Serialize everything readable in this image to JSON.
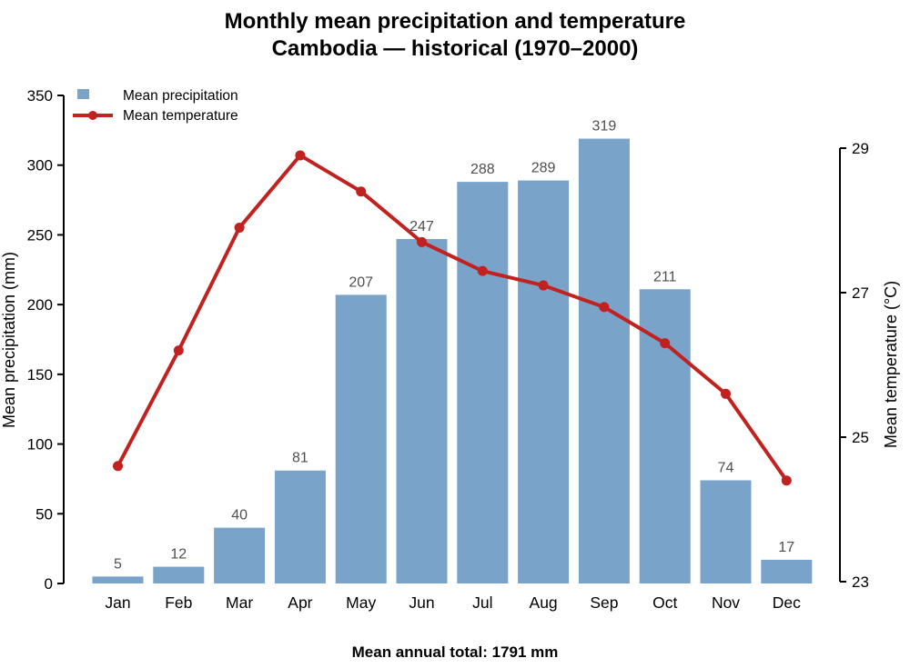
{
  "chart_data": {
    "type": "bar",
    "combo": "bar+line",
    "title": "Monthly mean precipitation and temperature",
    "subtitle": "Cambodia — historical (1970–2000)",
    "categories": [
      "Jan",
      "Feb",
      "Mar",
      "Apr",
      "May",
      "Jun",
      "Jul",
      "Aug",
      "Sep",
      "Oct",
      "Nov",
      "Dec"
    ],
    "series": [
      {
        "name": "Mean precipitation",
        "type": "bar",
        "axis": "left",
        "unit": "mm",
        "values": [
          5,
          12,
          40,
          81,
          207,
          247,
          288,
          289,
          319,
          211,
          74,
          17
        ],
        "color": "#7aa3c9"
      },
      {
        "name": "Mean temperature",
        "type": "line",
        "axis": "right",
        "unit": "°C",
        "values": [
          24.6,
          26.2,
          27.9,
          28.9,
          28.4,
          27.7,
          27.3,
          27.1,
          26.8,
          26.3,
          25.6,
          24.4
        ],
        "color": "#c12220"
      }
    ],
    "ylabel_left": "Mean precipitation (mm)",
    "ylabel_right": "Mean temperature (°C)",
    "ylim_left": [
      0,
      350
    ],
    "ylim_right": [
      23,
      29
    ],
    "yticks_left": [
      0,
      50,
      100,
      150,
      200,
      250,
      300,
      350
    ],
    "yticks_right": [
      23,
      25,
      27,
      29
    ],
    "bar_value_labels_shown": true,
    "grid": "off",
    "legend_position": "top-left-inside",
    "footer": "Mean annual total: 1791 mm",
    "colors": {
      "bar": "#7aa3c9",
      "line": "#c12220",
      "value_label": "#4f4f4f",
      "axis": "#000000",
      "background": "#ffffff"
    }
  }
}
